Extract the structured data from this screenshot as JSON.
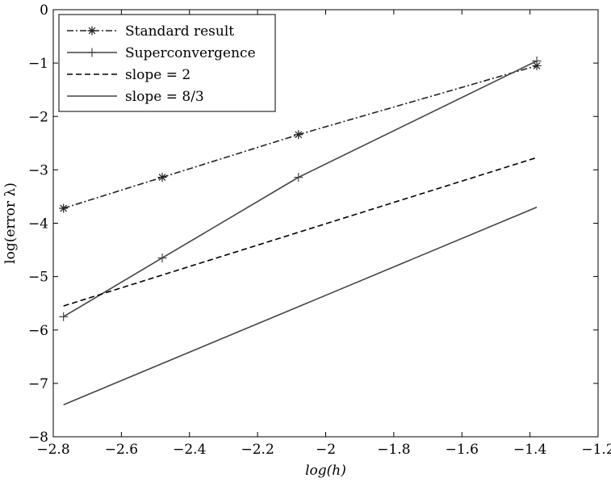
{
  "chart_data": {
    "type": "line",
    "xlabel": "log(h)",
    "ylabel": "log(error λ)",
    "xlim": [
      -2.8,
      -1.2
    ],
    "ylim": [
      -8,
      0
    ],
    "xticks": [
      -2.8,
      -2.6,
      -2.4,
      -2.2,
      -2.0,
      -1.8,
      -1.6,
      -1.4,
      -1.2
    ],
    "xtick_labels": [
      "−2.8",
      "−2.6",
      "−2.4",
      "−2.2",
      "−2",
      "−1.8",
      "−1.6",
      "−1.4",
      "−1.2"
    ],
    "yticks": [
      0,
      -1,
      -2,
      -3,
      -4,
      -5,
      -6,
      -7,
      -8
    ],
    "ytick_labels": [
      "0",
      "−1",
      "−2",
      "−3",
      "−4",
      "−5",
      "−6",
      "−7",
      "−8"
    ],
    "grid": false,
    "legend_position": "top-left",
    "series": [
      {
        "name": "Standard result",
        "style": "dashdot",
        "marker": "asterisk",
        "color": "#222222",
        "x": [
          -2.77,
          -2.48,
          -2.08,
          -1.38
        ],
        "y": [
          -3.72,
          -3.14,
          -2.34,
          -1.05
        ]
      },
      {
        "name": "Superconvergence",
        "style": "solid",
        "marker": "plus",
        "color": "#444444",
        "x": [
          -2.77,
          -2.48,
          -2.08,
          -1.38
        ],
        "y": [
          -5.75,
          -4.65,
          -3.14,
          -0.96
        ]
      },
      {
        "name": "slope = 2",
        "style": "dashed",
        "marker": "none",
        "color": "#000000",
        "x": [
          -2.77,
          -1.38
        ],
        "y": [
          -5.55,
          -2.77
        ]
      },
      {
        "name": "slope = 8/3",
        "style": "solid",
        "marker": "none",
        "color": "#444444",
        "x": [
          -2.77,
          -1.38
        ],
        "y": [
          -7.4,
          -3.7
        ]
      }
    ]
  }
}
